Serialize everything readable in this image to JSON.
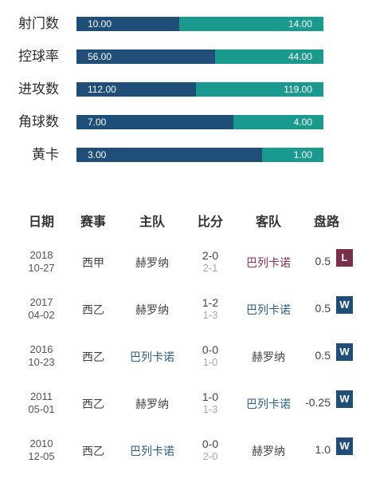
{
  "colors": {
    "home_bar": "#1f4e79",
    "away_bar": "#1a9a8f",
    "loss_badge": "#7b2f49",
    "win_badge": "#1f4e79"
  },
  "stats": [
    {
      "label": "射门数",
      "home": "10.00",
      "away": "14.00",
      "home_value": 10,
      "away_value": 14
    },
    {
      "label": "控球率",
      "home": "56.00",
      "away": "44.00",
      "home_value": 56,
      "away_value": 44
    },
    {
      "label": "进攻数",
      "home": "112.00",
      "away": "119.00",
      "home_value": 112,
      "away_value": 119
    },
    {
      "label": "角球数",
      "home": "7.00",
      "away": "4.00",
      "home_value": 7,
      "away_value": 4
    },
    {
      "label": "黄卡",
      "home": "3.00",
      "away": "1.00",
      "home_value": 3,
      "away_value": 1
    }
  ],
  "history": {
    "headers": [
      "日期",
      "赛事",
      "主队",
      "比分",
      "客队",
      "盘路"
    ],
    "rows": [
      {
        "year": "2018",
        "md": "10-27",
        "comp": "西甲",
        "home": "赫罗纳",
        "ft": "2-0",
        "ht": "2-1",
        "away": "巴列卡诺",
        "hl": "away",
        "hl_color": "red",
        "hcp": "0.5",
        "result": "L"
      },
      {
        "year": "2017",
        "md": "04-02",
        "comp": "西乙",
        "home": "赫罗纳",
        "ft": "1-2",
        "ht": "1-3",
        "away": "巴列卡诺",
        "hl": "away",
        "hl_color": "blue",
        "hcp": "0.5",
        "result": "W"
      },
      {
        "year": "2016",
        "md": "10-23",
        "comp": "西乙",
        "home": "巴列卡诺",
        "ft": "0-0",
        "ht": "1-0",
        "away": "赫罗纳",
        "hl": "home",
        "hl_color": "blue",
        "hcp": "0.5",
        "result": "W"
      },
      {
        "year": "2011",
        "md": "05-01",
        "comp": "西乙",
        "home": "赫罗纳",
        "ft": "1-0",
        "ht": "1-3",
        "away": "巴列卡诺",
        "hl": "away",
        "hl_color": "blue",
        "hcp": "-0.25",
        "result": "W"
      },
      {
        "year": "2010",
        "md": "12-05",
        "comp": "西乙",
        "home": "巴列卡诺",
        "ft": "0-0",
        "ht": "2-0",
        "away": "赫罗纳",
        "hl": "home",
        "hl_color": "blue",
        "hcp": "1.0",
        "result": "W"
      }
    ]
  }
}
